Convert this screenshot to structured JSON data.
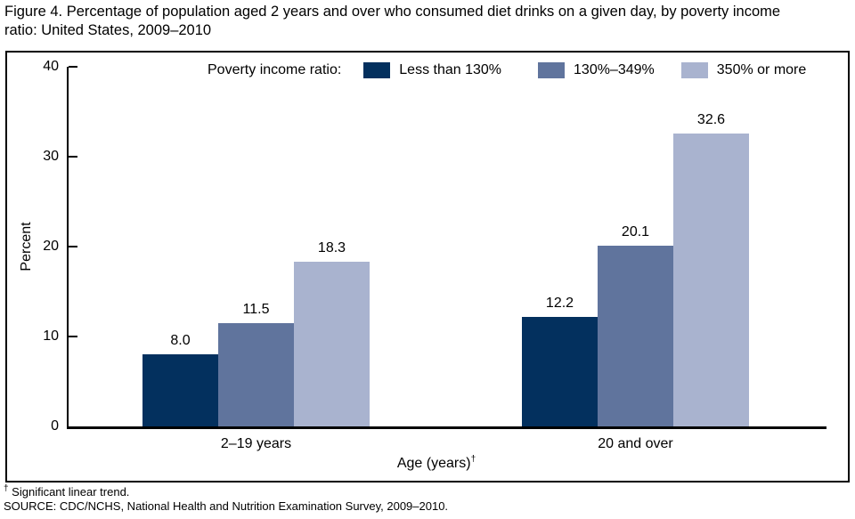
{
  "page": {
    "title_line1": "Figure 4. Percentage of population aged 2 years and over who consumed diet drinks on a given day, by poverty income",
    "title_line2": "ratio: United States, 2009–2010",
    "footnote_symbol": "†",
    "footnote_text": " Significant linear trend.",
    "source_text": "SOURCE: CDC/NCHS, National Health and Nutrition Examination Survey, 2009–2010."
  },
  "chart_data": {
    "type": "bar",
    "title": "Figure 4. Percentage of population aged 2 years and over who consumed diet drinks on a given day, by poverty income ratio: United States, 2009–2010",
    "categories": [
      "2–19 years",
      "20 and over"
    ],
    "series": [
      {
        "name": "Less than 130%",
        "color": "#03305e",
        "values": [
          8.0,
          12.2
        ]
      },
      {
        "name": "130%–349%",
        "color": "#60749d",
        "values": [
          11.5,
          20.1
        ]
      },
      {
        "name": "350% or more",
        "color": "#a9b3cf",
        "values": [
          18.3,
          32.6
        ]
      }
    ],
    "xlabel": "Age (years)",
    "xlabel_superscript": "†",
    "ylabel": "Percent",
    "ylim": [
      0,
      40
    ],
    "yticks": [
      0,
      10,
      20,
      30,
      40
    ],
    "legend_title": "Poverty income ratio:",
    "legend_position": "top-inside",
    "grid": false,
    "value_labels_shown": true,
    "value_label_decimals": 1,
    "colors": {
      "axis": "#000000",
      "text": "#000000",
      "background": "#ffffff"
    }
  }
}
